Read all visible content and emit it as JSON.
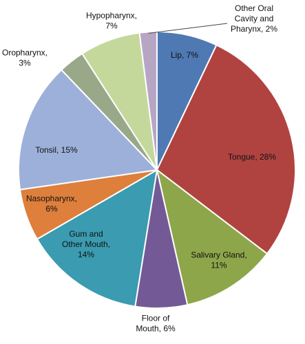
{
  "chart_data": {
    "type": "pie",
    "slices": [
      {
        "key": "lip",
        "label_lines": [
          "Lip, 7%"
        ],
        "value": 7,
        "color": "#4e79b3"
      },
      {
        "key": "tongue",
        "label_lines": [
          "Tongue, 28%"
        ],
        "value": 28,
        "color": "#b04340"
      },
      {
        "key": "salivary-gland",
        "label_lines": [
          "Salivary Gland,",
          "11%"
        ],
        "value": 11,
        "color": "#8ea64a"
      },
      {
        "key": "floor-of-mouth",
        "label_lines": [
          "Floor of",
          "Mouth, 6%"
        ],
        "value": 6,
        "color": "#735a96"
      },
      {
        "key": "gum-and-other-mouth",
        "label_lines": [
          "Gum and",
          "Other Mouth,",
          "14%"
        ],
        "value": 14,
        "color": "#3b9bb0"
      },
      {
        "key": "nasopharynx",
        "label_lines": [
          "Nasopharynx,",
          "6%"
        ],
        "value": 6,
        "color": "#de7f3b"
      },
      {
        "key": "tonsil",
        "label_lines": [
          "Tonsil, 15%"
        ],
        "value": 15,
        "color": "#9db0da"
      },
      {
        "key": "oropharynx",
        "label_lines": [
          "Oropharynx,",
          "3%"
        ],
        "value": 3,
        "color": "#9aa88a"
      },
      {
        "key": "hypopharynx",
        "label_lines": [
          "Hypopharynx,",
          "7%"
        ],
        "value": 7,
        "color": "#c5d89c"
      },
      {
        "key": "other-oral-cavity-and-pharynx",
        "label_lines": [
          "Other Oral",
          "Cavity and",
          "Pharynx, 2%"
        ],
        "value": 2,
        "color": "#b6a6c4"
      }
    ]
  }
}
